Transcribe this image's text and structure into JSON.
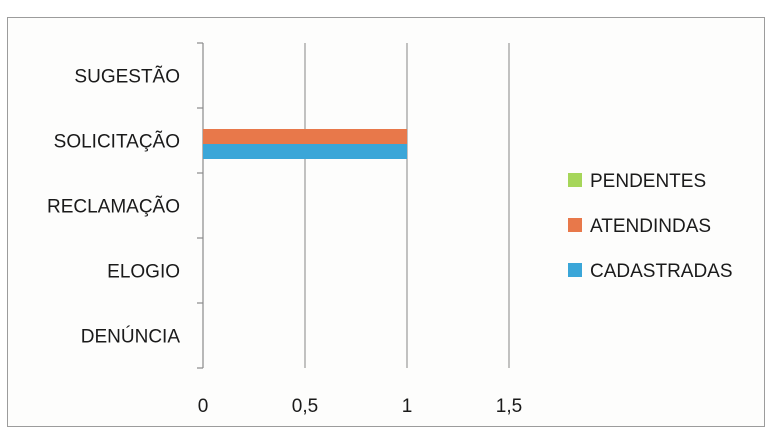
{
  "chart_data": {
    "type": "bar",
    "orientation": "horizontal",
    "categories": [
      "DENÚNCIA",
      "ELOGIO",
      "RECLAMAÇÃO",
      "SOLICITAÇÃO",
      "SUGESTÃO"
    ],
    "series": [
      {
        "name": "CADASTRADAS",
        "color": "#3aa6d8",
        "values": [
          0,
          0,
          0,
          1,
          0
        ]
      },
      {
        "name": "ATENDINDAS",
        "color": "#e8784a",
        "values": [
          0,
          0,
          0,
          1,
          0
        ]
      },
      {
        "name": "PENDENTES",
        "color": "#a6d65a",
        "values": [
          0,
          0,
          0,
          0,
          0
        ]
      }
    ],
    "x_ticks": [
      "0",
      "0,5",
      "1",
      "1,5"
    ],
    "xlim": [
      0,
      1.5
    ],
    "grid": "vertical",
    "legend": {
      "position": "right",
      "order": [
        "PENDENTES",
        "ATENDINDAS",
        "CADASTRADAS"
      ]
    }
  }
}
